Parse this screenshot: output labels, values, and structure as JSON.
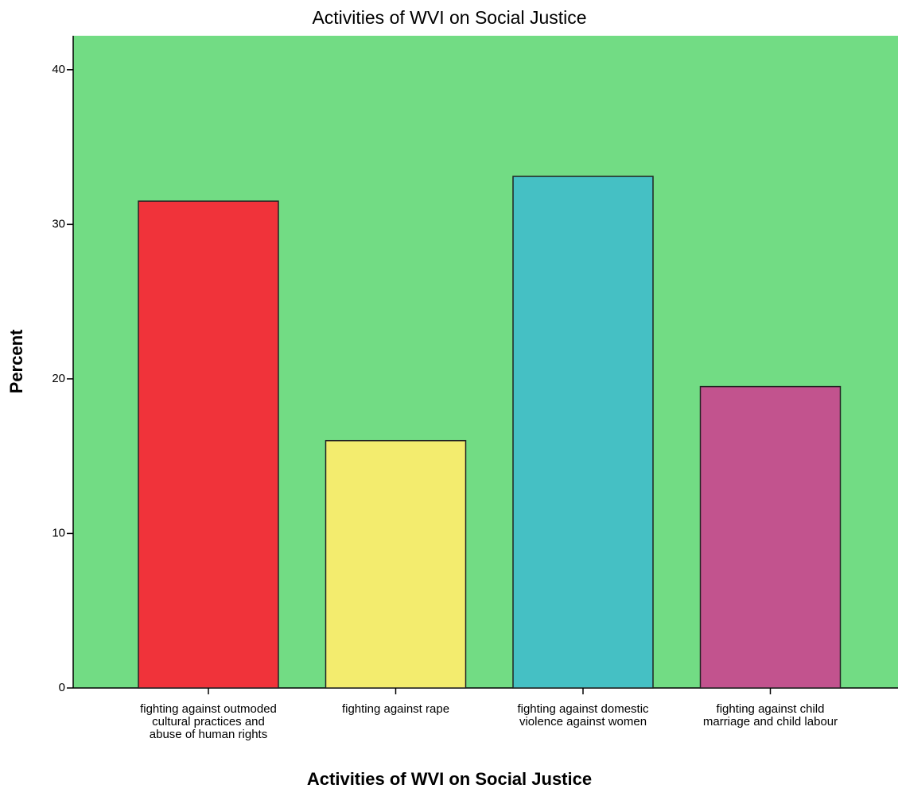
{
  "chart_data": {
    "type": "bar",
    "title": "Activities of WVI on Social Justice",
    "x_label": "Activities of WVI on Social Justice",
    "y_label": "Percent",
    "categories": [
      "fighting against outmoded\ncultural practices and\nabuse of human rights",
      "fighting against rape",
      "fighting against domestic\nviolence against women",
      "fighting against child\nmarriage and child labour"
    ],
    "values": [
      31.5,
      16.0,
      33.1,
      19.5
    ],
    "colors": [
      "#f0333a",
      "#f3ec6e",
      "#45c0c4",
      "#c2538e"
    ],
    "background": "#72dc84",
    "ylim": [
      0,
      42.2
    ],
    "yticks": [
      0,
      10,
      20,
      30,
      40
    ]
  }
}
